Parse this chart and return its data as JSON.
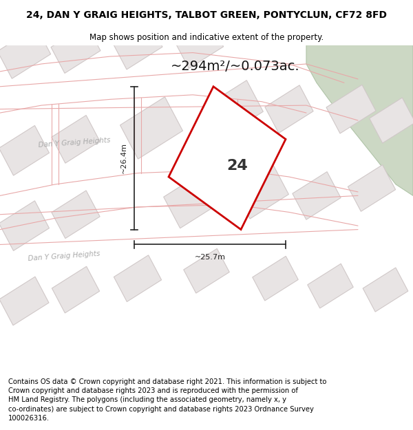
{
  "title": "24, DAN Y GRAIG HEIGHTS, TALBOT GREEN, PONTYCLUN, CF72 8FD",
  "subtitle": "Map shows position and indicative extent of the property.",
  "footer": "Contains OS data © Crown copyright and database right 2021. This information is subject to Crown copyright and database rights 2023 and is reproduced with the permission of HM Land Registry. The polygons (including the associated geometry, namely x, y co-ordinates) are subject to Crown copyright and database rights 2023 Ordnance Survey 100026316.",
  "area_label": "~294m²/~0.073ac.",
  "number_label": "24",
  "dim_h": "~26.4m",
  "dim_w": "~25.7m",
  "map_bg": "#ffffff",
  "road_outline_color": "#e8a8a8",
  "plot_color": "#cc0000",
  "green_fill": "#ccd8c4",
  "green_edge": "#b0c4a8",
  "building_fill": "#e8e4e4",
  "building_stroke": "#d0c8c8",
  "road_label_color": "#aaaaaa",
  "dim_line_color": "#222222",
  "title_fontsize": 10,
  "subtitle_fontsize": 8.5,
  "footer_fontsize": 7.2,
  "area_fontsize": 14,
  "number_fontsize": 16,
  "dim_fontsize": 8
}
